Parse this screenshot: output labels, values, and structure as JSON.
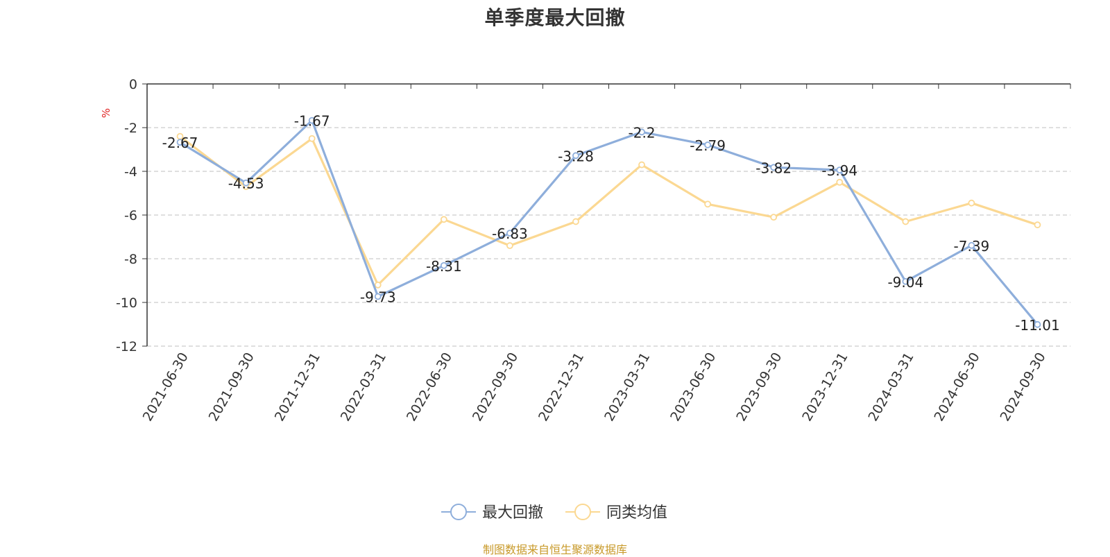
{
  "title": "单季度最大回撤",
  "source_note": "制图数据来自恒生聚源数据库",
  "chart_data": {
    "type": "line",
    "title": "单季度最大回撤",
    "xlabel": "",
    "ylabel": "%",
    "ylim": [
      -12,
      0
    ],
    "yticks": [
      0,
      -2,
      -4,
      -6,
      -8,
      -10,
      -12
    ],
    "grid": true,
    "legend_position": "bottom-center",
    "categories": [
      "2021-06-30",
      "2021-09-30",
      "2021-12-31",
      "2022-03-31",
      "2022-06-30",
      "2022-09-30",
      "2022-12-31",
      "2023-03-31",
      "2023-06-30",
      "2023-09-30",
      "2023-12-31",
      "2024-03-31",
      "2024-06-30",
      "2024-09-30"
    ],
    "series": [
      {
        "name": "最大回撤",
        "color": "#8eaedb",
        "show_labels": true,
        "values": [
          -2.67,
          -4.53,
          -1.67,
          -9.73,
          -8.31,
          -6.83,
          -3.28,
          -2.2,
          -2.79,
          -3.82,
          -3.94,
          -9.04,
          -7.39,
          -11.01
        ]
      },
      {
        "name": "同类均值",
        "color": "#fbd892",
        "show_labels": false,
        "values": [
          -2.4,
          -4.7,
          -2.5,
          -9.2,
          -6.2,
          -7.4,
          -6.3,
          -3.7,
          -5.5,
          -6.1,
          -4.5,
          -6.3,
          -5.45,
          -6.45
        ]
      }
    ]
  }
}
